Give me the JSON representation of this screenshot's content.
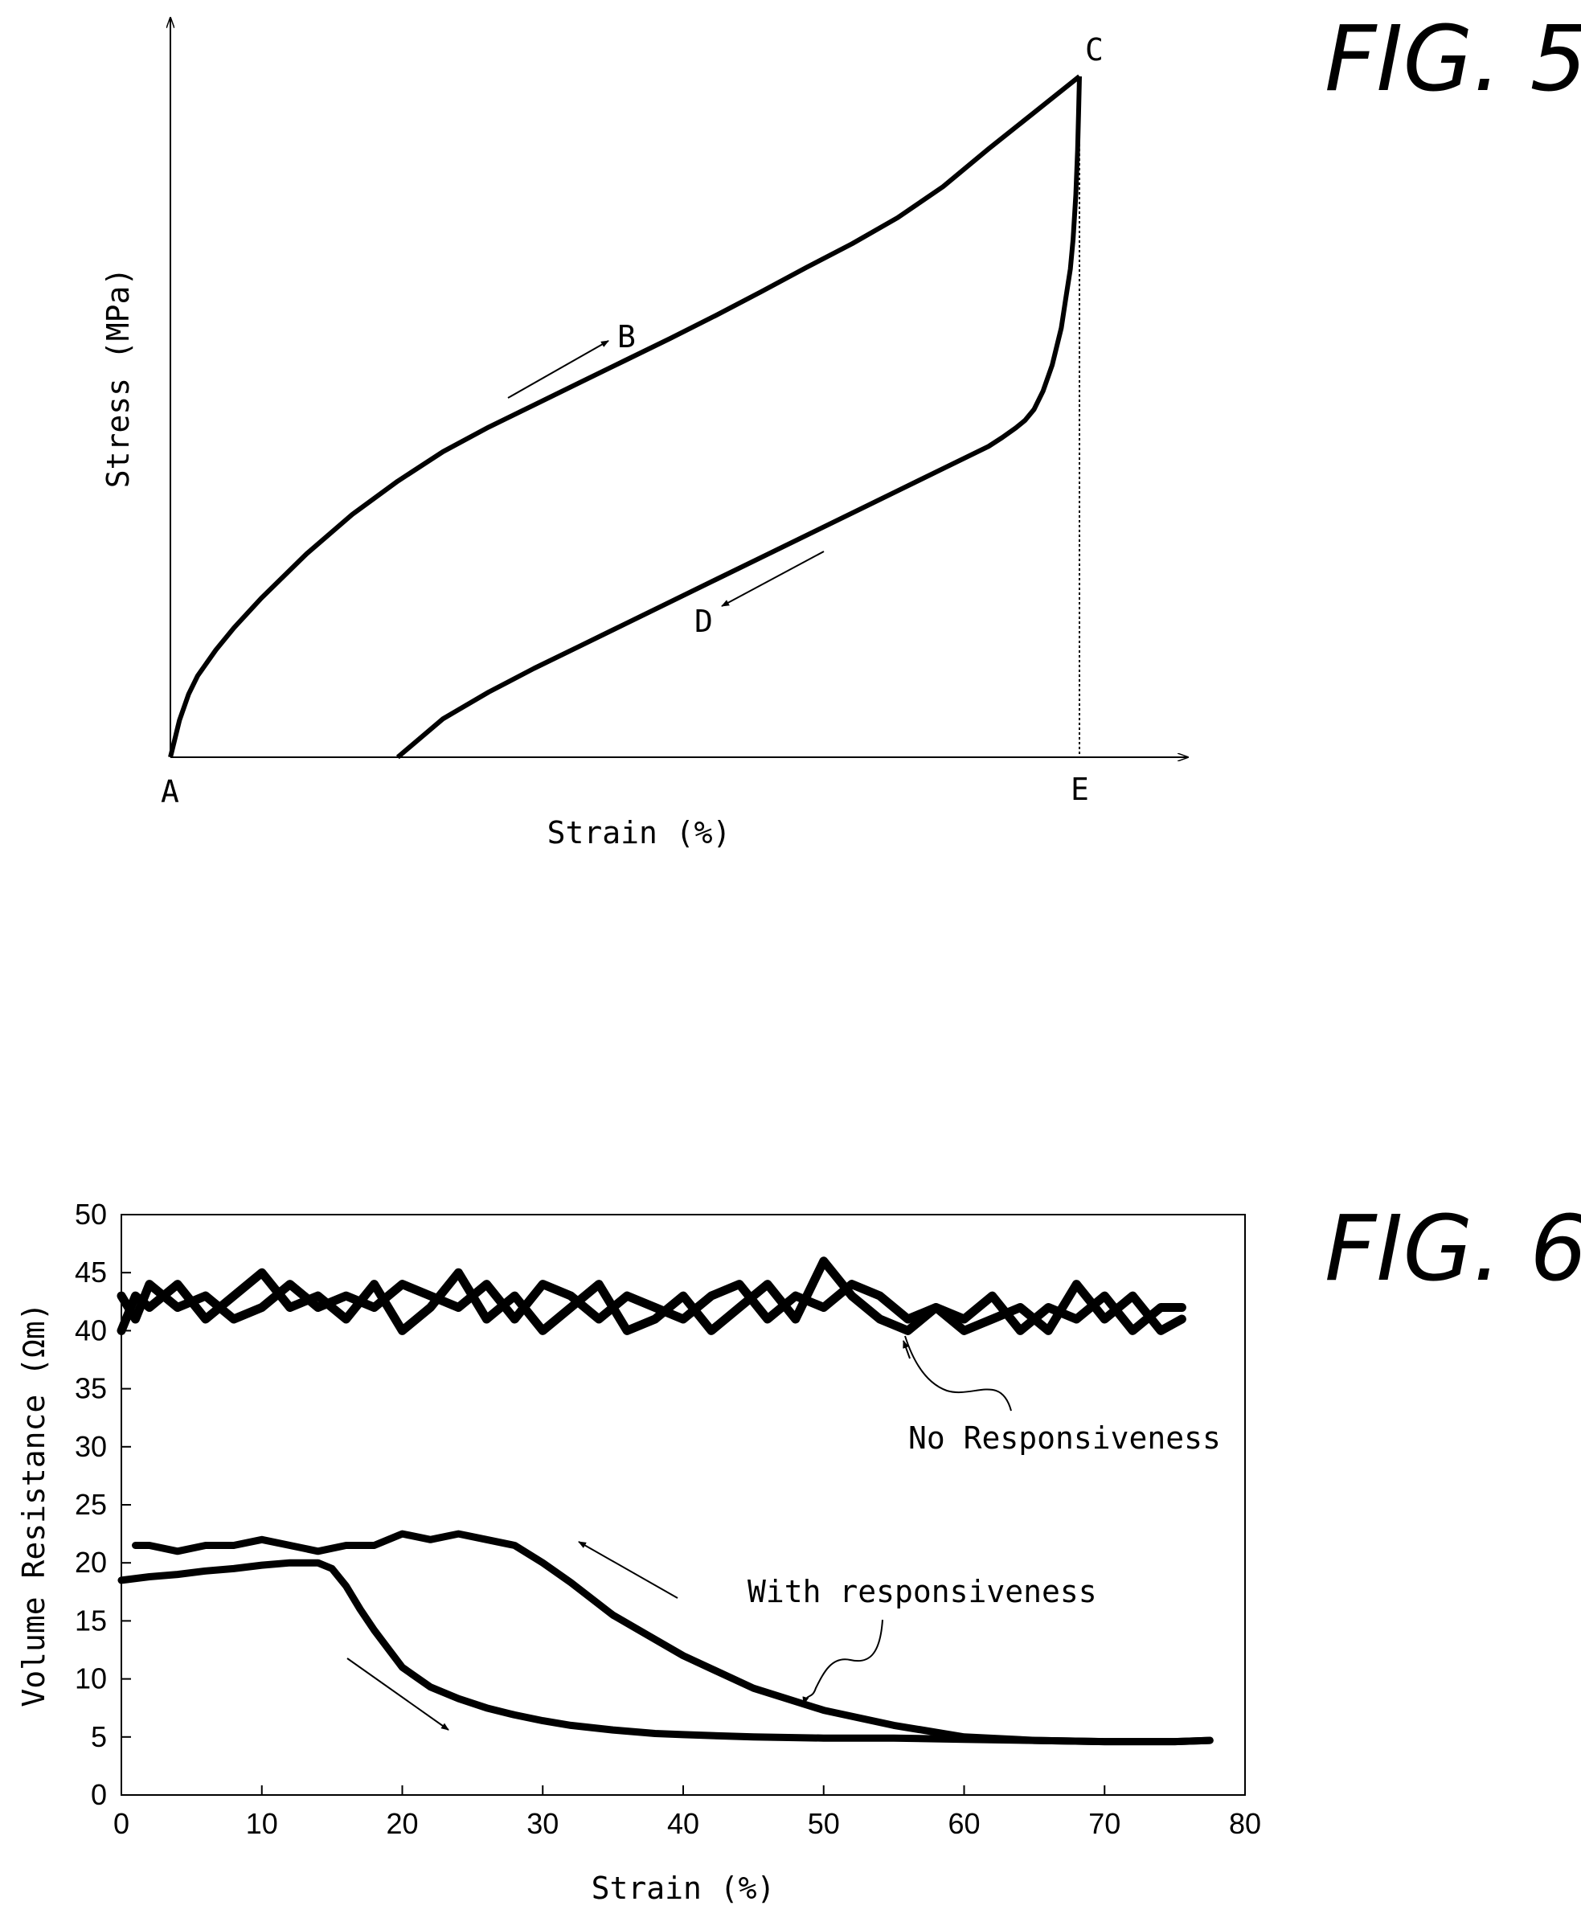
{
  "fig5": {
    "title": "FIG. 5",
    "ylabel": "Stress (MPa)",
    "xlabel": "Strain (%)",
    "points": {
      "A": "A",
      "B": "B",
      "C": "C",
      "D": "D",
      "E": "E"
    }
  },
  "fig6": {
    "title": "FIG. 6",
    "annotations": {
      "no_resp": "No Responsiveness",
      "with_resp": "With responsiveness"
    }
  },
  "chart_data": [
    {
      "type": "line",
      "title": "FIG. 5",
      "xlabel": "Strain (%)",
      "ylabel": "Stress (MPa)",
      "axes_numeric": false,
      "series": [
        {
          "label": "B",
          "direction": "loading (A to C)",
          "x": [
            0,
            1,
            2,
            3,
            5,
            7,
            10,
            15,
            20,
            25,
            30,
            35,
            40,
            45,
            50,
            55,
            60,
            65,
            70,
            75,
            80,
            85,
            90,
            95,
            100
          ],
          "y": [
            0,
            5,
            8.5,
            11,
            14.5,
            17.5,
            21.5,
            27.5,
            32.8,
            37.3,
            41.3,
            44.6,
            47.6,
            50.6,
            53.6,
            56.6,
            59.7,
            62.9,
            66.2,
            69.4,
            72.9,
            77.1,
            82.2,
            87.1,
            92
          ]
        },
        {
          "label": "D",
          "direction": "unloading (C to E then to zero stress)",
          "x": [
            100,
            99.9,
            99.8,
            99.6,
            99.3,
            99,
            98.5,
            98,
            97,
            96,
            95,
            94,
            93,
            91.5,
            90,
            85,
            80,
            75,
            70,
            65,
            60,
            55,
            50,
            45,
            40,
            35,
            30,
            25
          ],
          "y": [
            92,
            87,
            82,
            76,
            70,
            66,
            62,
            58,
            53,
            49.5,
            47,
            45.5,
            44.5,
            43.2,
            42,
            39,
            36,
            33,
            30,
            27,
            24,
            21,
            18,
            15,
            12,
            8.8,
            5.2,
            0
          ]
        }
      ]
    },
    {
      "type": "line",
      "title": "FIG. 6",
      "xlabel": "Strain (%)",
      "ylabel": "Volume Resistance (Ωm)",
      "xlim": [
        0,
        80
      ],
      "ylim": [
        0,
        50
      ],
      "xticks": [
        0,
        10,
        20,
        30,
        40,
        50,
        60,
        70,
        80
      ],
      "yticks": [
        0,
        5,
        10,
        15,
        20,
        25,
        30,
        35,
        40,
        45,
        50
      ],
      "series": [
        {
          "label": "No Responsiveness",
          "x": [
            0,
            1,
            2,
            4,
            6,
            8,
            10,
            12,
            14,
            16,
            18,
            20,
            22,
            24,
            26,
            28,
            30,
            32,
            34,
            36,
            38,
            40,
            42,
            44,
            46,
            48,
            50,
            52,
            54,
            56,
            58,
            60,
            62,
            64,
            66,
            68,
            70,
            72,
            74,
            75.5
          ],
          "y": [
            40,
            43,
            42,
            44,
            41,
            43,
            45,
            42,
            43,
            41,
            44,
            40,
            42,
            45,
            41,
            43,
            40,
            42,
            44,
            40,
            41,
            43,
            40,
            42,
            44,
            41,
            46,
            43,
            41,
            40,
            42,
            40,
            41,
            42,
            40,
            44,
            41,
            43,
            40,
            41
          ]
        },
        {
          "label": "No Responsiveness",
          "x": [
            0,
            1,
            2,
            4,
            6,
            8,
            10,
            12,
            14,
            16,
            18,
            20,
            22,
            24,
            26,
            28,
            30,
            32,
            34,
            36,
            38,
            40,
            42,
            44,
            46,
            48,
            50,
            52,
            54,
            56,
            58,
            60,
            62,
            64,
            66,
            68,
            70,
            72,
            74,
            75.5
          ],
          "y": [
            43,
            41,
            44,
            42,
            43,
            41,
            42,
            44,
            42,
            43,
            42,
            44,
            43,
            42,
            44,
            41,
            44,
            43,
            41,
            43,
            42,
            41,
            43,
            44,
            41,
            43,
            42,
            44,
            43,
            41,
            42,
            41,
            43,
            40,
            42,
            41,
            43,
            40,
            42,
            42
          ]
        },
        {
          "label": "With responsiveness",
          "direction": "increasing strain",
          "x": [
            0,
            2,
            4,
            6,
            8,
            10,
            12,
            14,
            15,
            16,
            17,
            18,
            19,
            20,
            22,
            24,
            26,
            28,
            30,
            32,
            35,
            38,
            40,
            45,
            50,
            55,
            60,
            65,
            70,
            75,
            77.5
          ],
          "y": [
            18.5,
            18.8,
            19,
            19.3,
            19.5,
            19.8,
            20,
            20,
            19.5,
            18,
            16,
            14.2,
            12.6,
            11,
            9.3,
            8.3,
            7.5,
            6.9,
            6.4,
            6,
            5.6,
            5.3,
            5.2,
            5,
            4.9,
            4.9,
            4.8,
            4.7,
            4.6,
            4.6,
            4.7
          ]
        },
        {
          "label": "With responsiveness",
          "direction": "decreasing strain",
          "x": [
            77.5,
            75,
            70,
            65,
            60,
            55,
            50,
            45,
            40,
            35,
            32,
            30,
            28,
            26,
            24,
            22,
            20,
            18,
            16,
            14,
            12,
            10,
            8,
            6,
            4,
            2,
            1
          ],
          "y": [
            4.7,
            4.6,
            4.6,
            4.7,
            5,
            6,
            7.3,
            9.2,
            12,
            15.5,
            18.3,
            20,
            21.5,
            22,
            22.5,
            22,
            22.5,
            21.5,
            21.5,
            21,
            21.5,
            22,
            21.5,
            21.5,
            21,
            21.5,
            21.5
          ]
        }
      ]
    }
  ]
}
